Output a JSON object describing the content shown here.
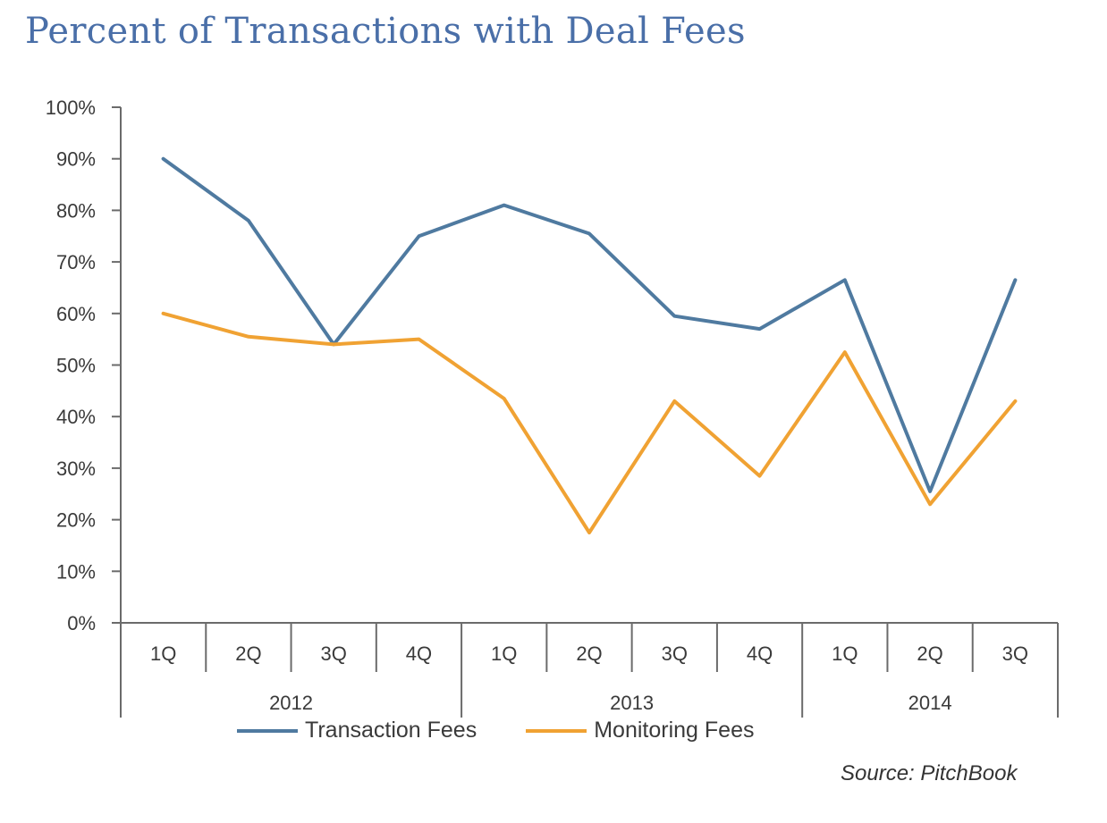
{
  "chart_data": {
    "type": "line",
    "title": "Percent of Transactions with Deal Fees",
    "categories": [
      "1Q",
      "2Q",
      "3Q",
      "4Q",
      "1Q",
      "2Q",
      "3Q",
      "4Q",
      "1Q",
      "2Q",
      "3Q"
    ],
    "groups": [
      {
        "label": "2012",
        "count": 4
      },
      {
        "label": "2013",
        "count": 4
      },
      {
        "label": "2014",
        "count": 3
      }
    ],
    "ylim": [
      0,
      100
    ],
    "yticks": [
      "0%",
      "10%",
      "20%",
      "30%",
      "40%",
      "50%",
      "60%",
      "70%",
      "80%",
      "90%",
      "100%"
    ],
    "ytick_values": [
      0,
      10,
      20,
      30,
      40,
      50,
      60,
      70,
      80,
      90,
      100
    ],
    "series": [
      {
        "name": "Transaction Fees",
        "color": "#4f7aa0",
        "values": [
          90,
          78,
          54,
          75,
          81,
          75.5,
          59.5,
          57,
          66.5,
          25.5,
          66.5
        ]
      },
      {
        "name": "Monitoring Fees",
        "color": "#f0a233",
        "values": [
          60,
          55.5,
          54,
          55,
          43.5,
          17.5,
          43,
          28.5,
          52.5,
          23,
          43
        ]
      }
    ],
    "grid": false,
    "legend_position": "bottom",
    "source": "Source: PitchBook"
  }
}
